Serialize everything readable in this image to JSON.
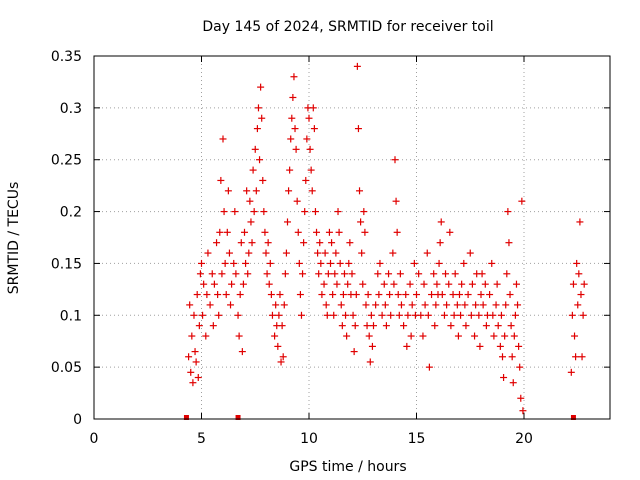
{
  "chart_data": {
    "type": "scatter",
    "title": "Day 145 of 2024, SRMTID for receiver toil",
    "xlabel": "GPS time / hours",
    "ylabel": "SRMTID / TECUs",
    "xlim": [
      0,
      24
    ],
    "ylim": [
      0,
      0.35
    ],
    "xticks": [
      "0",
      "5",
      "10",
      "15",
      "20"
    ],
    "xtick_values": [
      0,
      5,
      10,
      15,
      20
    ],
    "yticks": [
      "0",
      "0.05",
      "0.1",
      "0.15",
      "0.2",
      "0.25",
      "0.3",
      "0.35"
    ],
    "ytick_values": [
      0,
      0.05,
      0.1,
      0.15,
      0.2,
      0.25,
      0.3,
      0.35
    ],
    "grid": true,
    "legend": "none",
    "marker": "plus",
    "color": "#e00000",
    "series": [
      {
        "points": [
          [
            4.4,
            0.06
          ],
          [
            4.45,
            0.11
          ],
          [
            4.5,
            0.045
          ],
          [
            4.55,
            0.08
          ],
          [
            4.6,
            0.035
          ],
          [
            4.65,
            0.1
          ],
          [
            4.7,
            0.065
          ],
          [
            4.75,
            0.055
          ],
          [
            4.8,
            0.12
          ],
          [
            4.85,
            0.04
          ],
          [
            4.9,
            0.09
          ],
          [
            4.95,
            0.14
          ],
          [
            5.0,
            0.15
          ],
          [
            5.05,
            0.1
          ],
          [
            5.1,
            0.13
          ],
          [
            5.2,
            0.08
          ],
          [
            5.25,
            0.12
          ],
          [
            5.3,
            0.16
          ],
          [
            5.4,
            0.11
          ],
          [
            5.5,
            0.14
          ],
          [
            5.55,
            0.09
          ],
          [
            5.6,
            0.13
          ],
          [
            5.7,
            0.17
          ],
          [
            5.75,
            0.12
          ],
          [
            5.8,
            0.1
          ],
          [
            5.85,
            0.18
          ],
          [
            5.9,
            0.23
          ],
          [
            5.95,
            0.14
          ],
          [
            6.0,
            0.27
          ],
          [
            6.05,
            0.2
          ],
          [
            6.1,
            0.15
          ],
          [
            6.15,
            0.12
          ],
          [
            6.2,
            0.18
          ],
          [
            6.25,
            0.22
          ],
          [
            6.3,
            0.16
          ],
          [
            6.35,
            0.11
          ],
          [
            6.4,
            0.13
          ],
          [
            6.5,
            0.15
          ],
          [
            6.55,
            0.2
          ],
          [
            6.6,
            0.14
          ],
          [
            6.7,
            0.1
          ],
          [
            6.75,
            0.08
          ],
          [
            6.8,
            0.12
          ],
          [
            6.85,
            0.17
          ],
          [
            6.9,
            0.065
          ],
          [
            6.95,
            0.13
          ],
          [
            7.0,
            0.18
          ],
          [
            7.05,
            0.15
          ],
          [
            7.1,
            0.22
          ],
          [
            7.15,
            0.14
          ],
          [
            7.2,
            0.16
          ],
          [
            7.25,
            0.21
          ],
          [
            7.3,
            0.19
          ],
          [
            7.35,
            0.17
          ],
          [
            7.4,
            0.24
          ],
          [
            7.45,
            0.2
          ],
          [
            7.5,
            0.26
          ],
          [
            7.55,
            0.22
          ],
          [
            7.6,
            0.28
          ],
          [
            7.65,
            0.3
          ],
          [
            7.7,
            0.25
          ],
          [
            7.75,
            0.32
          ],
          [
            7.8,
            0.29
          ],
          [
            7.85,
            0.23
          ],
          [
            7.9,
            0.2
          ],
          [
            7.95,
            0.18
          ],
          [
            8.0,
            0.16
          ],
          [
            8.05,
            0.14
          ],
          [
            8.1,
            0.17
          ],
          [
            8.15,
            0.13
          ],
          [
            8.2,
            0.15
          ],
          [
            8.25,
            0.12
          ],
          [
            8.3,
            0.1
          ],
          [
            8.4,
            0.08
          ],
          [
            8.45,
            0.11
          ],
          [
            8.5,
            0.09
          ],
          [
            8.55,
            0.07
          ],
          [
            8.6,
            0.1
          ],
          [
            8.65,
            0.12
          ],
          [
            8.7,
            0.055
          ],
          [
            8.75,
            0.09
          ],
          [
            8.8,
            0.06
          ],
          [
            8.85,
            0.11
          ],
          [
            8.9,
            0.14
          ],
          [
            8.95,
            0.16
          ],
          [
            9.0,
            0.19
          ],
          [
            9.05,
            0.22
          ],
          [
            9.1,
            0.24
          ],
          [
            9.15,
            0.27
          ],
          [
            9.2,
            0.29
          ],
          [
            9.25,
            0.31
          ],
          [
            9.3,
            0.33
          ],
          [
            9.35,
            0.28
          ],
          [
            9.4,
            0.26
          ],
          [
            9.45,
            0.21
          ],
          [
            9.5,
            0.18
          ],
          [
            9.55,
            0.15
          ],
          [
            9.6,
            0.12
          ],
          [
            9.65,
            0.1
          ],
          [
            9.7,
            0.14
          ],
          [
            9.75,
            0.17
          ],
          [
            9.8,
            0.2
          ],
          [
            9.85,
            0.23
          ],
          [
            9.9,
            0.27
          ],
          [
            9.95,
            0.3
          ],
          [
            10.0,
            0.29
          ],
          [
            10.05,
            0.26
          ],
          [
            10.1,
            0.24
          ],
          [
            10.15,
            0.22
          ],
          [
            10.2,
            0.3
          ],
          [
            10.25,
            0.28
          ],
          [
            10.3,
            0.2
          ],
          [
            10.35,
            0.18
          ],
          [
            10.4,
            0.16
          ],
          [
            10.45,
            0.14
          ],
          [
            10.5,
            0.17
          ],
          [
            10.55,
            0.15
          ],
          [
            10.6,
            0.12
          ],
          [
            10.7,
            0.13
          ],
          [
            10.75,
            0.16
          ],
          [
            10.8,
            0.11
          ],
          [
            10.85,
            0.1
          ],
          [
            10.9,
            0.14
          ],
          [
            10.95,
            0.18
          ],
          [
            11.0,
            0.15
          ],
          [
            11.05,
            0.17
          ],
          [
            11.1,
            0.12
          ],
          [
            11.15,
            0.1
          ],
          [
            11.2,
            0.14
          ],
          [
            11.25,
            0.16
          ],
          [
            11.3,
            0.13
          ],
          [
            11.35,
            0.2
          ],
          [
            11.4,
            0.18
          ],
          [
            11.45,
            0.15
          ],
          [
            11.5,
            0.11
          ],
          [
            11.55,
            0.09
          ],
          [
            11.6,
            0.12
          ],
          [
            11.65,
            0.14
          ],
          [
            11.7,
            0.1
          ],
          [
            11.75,
            0.08
          ],
          [
            11.8,
            0.13
          ],
          [
            11.85,
            0.15
          ],
          [
            11.9,
            0.17
          ],
          [
            11.95,
            0.12
          ],
          [
            12.0,
            0.14
          ],
          [
            12.05,
            0.1
          ],
          [
            12.1,
            0.065
          ],
          [
            12.15,
            0.09
          ],
          [
            12.2,
            0.12
          ],
          [
            12.25,
            0.34
          ],
          [
            12.3,
            0.28
          ],
          [
            12.35,
            0.22
          ],
          [
            12.4,
            0.19
          ],
          [
            12.45,
            0.16
          ],
          [
            12.5,
            0.13
          ],
          [
            12.55,
            0.2
          ],
          [
            12.6,
            0.18
          ],
          [
            12.65,
            0.11
          ],
          [
            12.7,
            0.09
          ],
          [
            12.75,
            0.12
          ],
          [
            12.8,
            0.08
          ],
          [
            12.85,
            0.055
          ],
          [
            12.9,
            0.1
          ],
          [
            12.95,
            0.07
          ],
          [
            13.0,
            0.09
          ],
          [
            13.1,
            0.11
          ],
          [
            13.2,
            0.14
          ],
          [
            13.25,
            0.12
          ],
          [
            13.3,
            0.15
          ],
          [
            13.4,
            0.1
          ],
          [
            13.5,
            0.13
          ],
          [
            13.55,
            0.11
          ],
          [
            13.6,
            0.09
          ],
          [
            13.7,
            0.14
          ],
          [
            13.75,
            0.12
          ],
          [
            13.8,
            0.1
          ],
          [
            13.9,
            0.16
          ],
          [
            13.95,
            0.13
          ],
          [
            14.0,
            0.25
          ],
          [
            14.05,
            0.21
          ],
          [
            14.1,
            0.18
          ],
          [
            14.15,
            0.12
          ],
          [
            14.2,
            0.1
          ],
          [
            14.25,
            0.14
          ],
          [
            14.3,
            0.11
          ],
          [
            14.4,
            0.09
          ],
          [
            14.5,
            0.12
          ],
          [
            14.55,
            0.07
          ],
          [
            14.6,
            0.1
          ],
          [
            14.7,
            0.13
          ],
          [
            14.75,
            0.08
          ],
          [
            14.8,
            0.11
          ],
          [
            14.9,
            0.15
          ],
          [
            14.95,
            0.1
          ],
          [
            15.0,
            0.12
          ],
          [
            15.1,
            0.14
          ],
          [
            15.2,
            0.1
          ],
          [
            15.3,
            0.08
          ],
          [
            15.35,
            0.13
          ],
          [
            15.4,
            0.11
          ],
          [
            15.5,
            0.16
          ],
          [
            15.55,
            0.1
          ],
          [
            15.6,
            0.05
          ],
          [
            15.7,
            0.12
          ],
          [
            15.8,
            0.14
          ],
          [
            15.85,
            0.09
          ],
          [
            15.9,
            0.11
          ],
          [
            15.95,
            0.13
          ],
          [
            16.0,
            0.12
          ],
          [
            16.05,
            0.15
          ],
          [
            16.1,
            0.17
          ],
          [
            16.15,
            0.19
          ],
          [
            16.2,
            0.12
          ],
          [
            16.3,
            0.1
          ],
          [
            16.35,
            0.14
          ],
          [
            16.4,
            0.11
          ],
          [
            16.5,
            0.13
          ],
          [
            16.55,
            0.18
          ],
          [
            16.6,
            0.09
          ],
          [
            16.7,
            0.12
          ],
          [
            16.75,
            0.1
          ],
          [
            16.8,
            0.14
          ],
          [
            16.9,
            0.11
          ],
          [
            16.95,
            0.08
          ],
          [
            17.0,
            0.12
          ],
          [
            17.05,
            0.1
          ],
          [
            17.1,
            0.13
          ],
          [
            17.2,
            0.15
          ],
          [
            17.25,
            0.11
          ],
          [
            17.3,
            0.09
          ],
          [
            17.4,
            0.12
          ],
          [
            17.5,
            0.16
          ],
          [
            17.55,
            0.1
          ],
          [
            17.6,
            0.13
          ],
          [
            17.7,
            0.08
          ],
          [
            17.75,
            0.11
          ],
          [
            17.8,
            0.14
          ],
          [
            17.9,
            0.1
          ],
          [
            17.95,
            0.07
          ],
          [
            18.0,
            0.12
          ],
          [
            18.05,
            0.14
          ],
          [
            18.1,
            0.11
          ],
          [
            18.2,
            0.13
          ],
          [
            18.25,
            0.09
          ],
          [
            18.3,
            0.1
          ],
          [
            18.4,
            0.12
          ],
          [
            18.5,
            0.15
          ],
          [
            18.55,
            0.1
          ],
          [
            18.6,
            0.08
          ],
          [
            18.7,
            0.11
          ],
          [
            18.75,
            0.13
          ],
          [
            18.8,
            0.09
          ],
          [
            18.9,
            0.07
          ],
          [
            18.95,
            0.1
          ],
          [
            19.0,
            0.06
          ],
          [
            19.05,
            0.04
          ],
          [
            19.1,
            0.08
          ],
          [
            19.15,
            0.11
          ],
          [
            19.2,
            0.14
          ],
          [
            19.25,
            0.2
          ],
          [
            19.3,
            0.17
          ],
          [
            19.35,
            0.12
          ],
          [
            19.4,
            0.09
          ],
          [
            19.45,
            0.06
          ],
          [
            19.5,
            0.035
          ],
          [
            19.55,
            0.08
          ],
          [
            19.6,
            0.1
          ],
          [
            19.65,
            0.13
          ],
          [
            19.7,
            0.11
          ],
          [
            19.75,
            0.07
          ],
          [
            19.8,
            0.05
          ],
          [
            19.85,
            0.02
          ],
          [
            19.9,
            0.21
          ],
          [
            19.95,
            0.008
          ],
          [
            22.2,
            0.045
          ],
          [
            22.25,
            0.1
          ],
          [
            22.3,
            0.13
          ],
          [
            22.35,
            0.08
          ],
          [
            22.4,
            0.06
          ],
          [
            22.45,
            0.15
          ],
          [
            22.5,
            0.11
          ],
          [
            22.55,
            0.14
          ],
          [
            22.6,
            0.19
          ],
          [
            22.65,
            0.12
          ],
          [
            22.7,
            0.06
          ],
          [
            22.75,
            0.1
          ],
          [
            22.8,
            0.13
          ]
        ]
      }
    ],
    "gap_markers_x": [
      4.3,
      6.7,
      22.3
    ]
  }
}
